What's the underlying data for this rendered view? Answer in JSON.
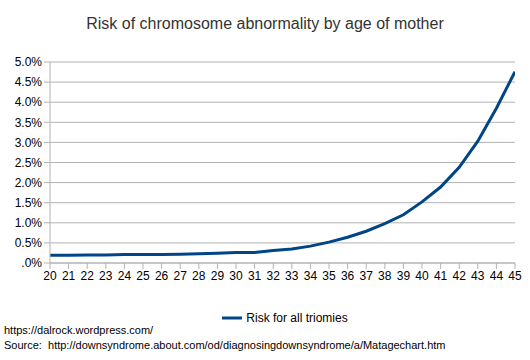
{
  "chart_data": {
    "type": "line",
    "title": "Risk of chromosome abnormality by age of mother",
    "x": [
      20,
      21,
      22,
      23,
      24,
      25,
      26,
      27,
      28,
      29,
      30,
      31,
      32,
      33,
      34,
      35,
      36,
      37,
      38,
      39,
      40,
      41,
      42,
      43,
      44,
      45
    ],
    "series": [
      {
        "name": "Risk for all triomies",
        "color": "#004586",
        "values": [
          0.19,
          0.19,
          0.2,
          0.2,
          0.21,
          0.21,
          0.21,
          0.22,
          0.23,
          0.24,
          0.26,
          0.26,
          0.31,
          0.35,
          0.42,
          0.52,
          0.64,
          0.79,
          0.98,
          1.2,
          1.52,
          1.89,
          2.38,
          3.03,
          3.85,
          4.76
        ]
      }
    ],
    "xlim": [
      20,
      45
    ],
    "xticks": [
      20,
      21,
      22,
      23,
      24,
      25,
      26,
      27,
      28,
      29,
      30,
      31,
      32,
      33,
      34,
      35,
      36,
      37,
      38,
      39,
      40,
      41,
      42,
      43,
      44,
      45
    ],
    "ylim": [
      0,
      5
    ],
    "yticks": [
      {
        "value": 0,
        "label": ".0%"
      },
      {
        "value": 0.5,
        "label": "0.5%"
      },
      {
        "value": 1,
        "label": "1.0%"
      },
      {
        "value": 1.5,
        "label": "1.5%"
      },
      {
        "value": 2,
        "label": "2.0%"
      },
      {
        "value": 2.5,
        "label": "2.5%"
      },
      {
        "value": 3,
        "label": "3.0%"
      },
      {
        "value": 3.5,
        "label": "3.5%"
      },
      {
        "value": 4,
        "label": "4.0%"
      },
      {
        "value": 4.5,
        "label": "4.5%"
      },
      {
        "value": 5,
        "label": "5.0%"
      }
    ],
    "grid": true,
    "legend": "bottom",
    "annotations": [
      "https://dalrock.wordpress.com/",
      "Source:  http://downsyndrome.about.com/od/diagnosingdownsyndrome/a/Matagechart.htm"
    ]
  }
}
